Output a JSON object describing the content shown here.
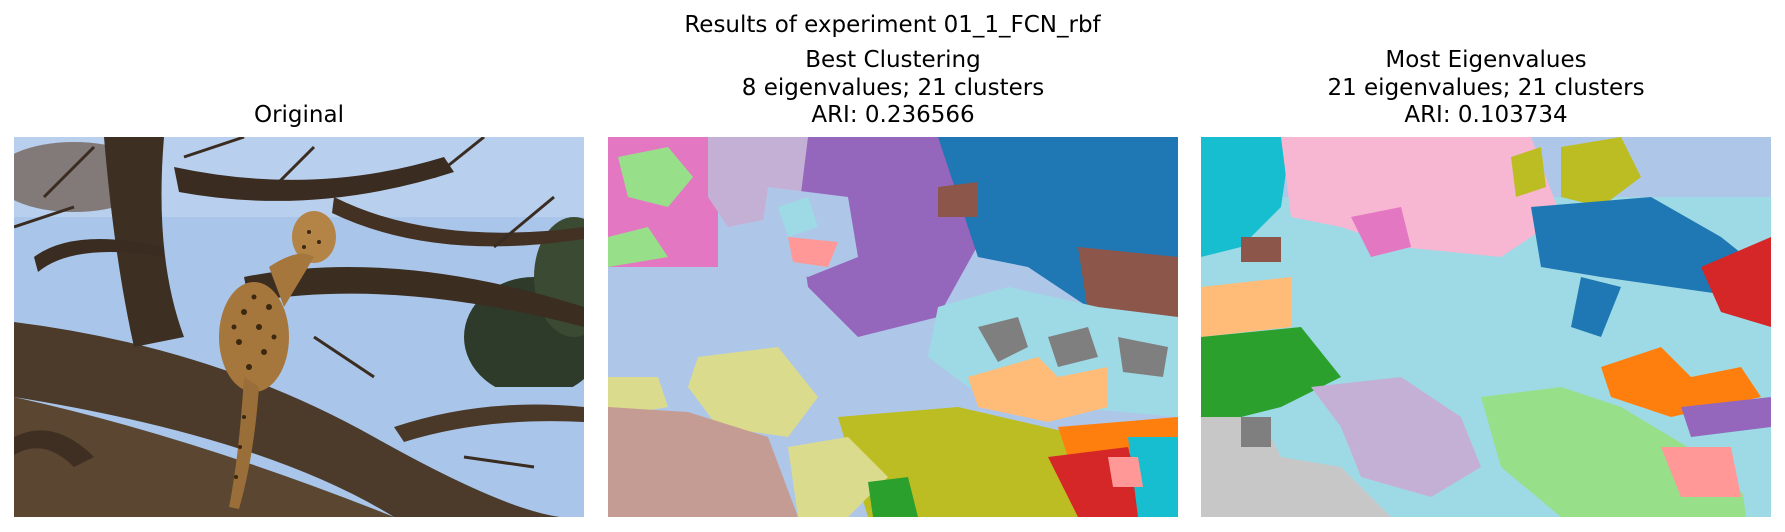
{
  "figure": {
    "suptitle": "Results of experiment 01_1_FCN_rbf",
    "panels": [
      {
        "title_lines": [
          "Original"
        ]
      },
      {
        "title_lines": [
          "Best Clustering",
          "8 eigenvalues; 21 clusters",
          "ARI: 0.236566"
        ]
      },
      {
        "title_lines": [
          "Most Eigenvalues",
          "21 eigenvalues; 21 clusters",
          "ARI: 0.103734"
        ]
      }
    ]
  },
  "colors": {
    "sky": "#a9c6ea",
    "bark": "#4a3a2a",
    "leopard": "#a6773d",
    "tab_blue": "#1f77b4",
    "tab_orange": "#ff7f0e",
    "tab_green": "#2ca02c",
    "tab_red": "#d62728",
    "tab_purple": "#9467bd",
    "tab_brown": "#8c564b",
    "tab_pink": "#e377c2",
    "tab_gray": "#7f7f7f",
    "tab_olive": "#bcbd22",
    "tab_cyan": "#17becf",
    "light_blue": "#aec7e8",
    "light_orange": "#ffbb78",
    "light_green": "#98df8a",
    "light_red": "#ff9896",
    "light_purple": "#c5b0d5",
    "light_brown": "#c49c94",
    "light_pink": "#f7b6d2",
    "light_gray": "#c7c7c7",
    "light_olive": "#dbdb8d",
    "light_cyan": "#9edae5"
  }
}
